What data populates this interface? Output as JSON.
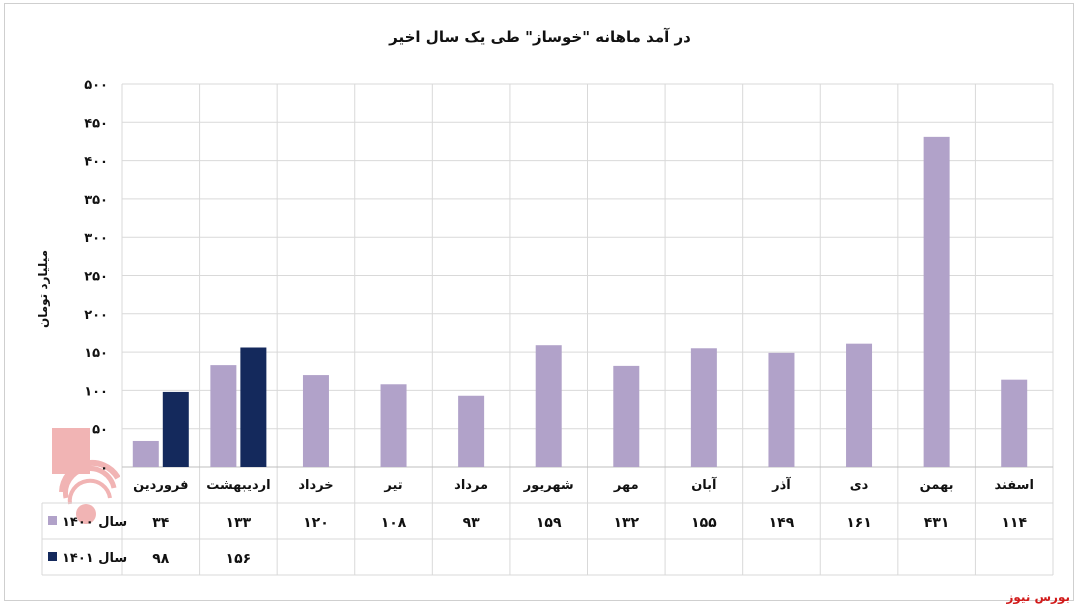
{
  "title": "در آمد ماهانه \"خوساز\" طی یک سال اخیر",
  "source": "بورس نیوز",
  "colors": {
    "series_1400": "#b1a2c9",
    "series_1401": "#14295c",
    "grid": "#d9d9d9",
    "source": "#d11a1a"
  },
  "chart_data": {
    "type": "bar",
    "title": "در آمد ماهانه \"خوساز\" طی یک سال اخیر",
    "ylabel": "میلیارد تومان",
    "xlabel": "",
    "ylim": [
      0,
      500
    ],
    "yticks": [
      "۰",
      "۵۰",
      "۱۰۰",
      "۱۵۰",
      "۲۰۰",
      "۲۵۰",
      "۳۰۰",
      "۳۵۰",
      "۴۰۰",
      "۴۵۰",
      "۵۰۰"
    ],
    "ytick_values": [
      0,
      50,
      100,
      150,
      200,
      250,
      300,
      350,
      400,
      450,
      500
    ],
    "categories": [
      "فروردین",
      "اردیبهشت",
      "خرداد",
      "تیر",
      "مرداد",
      "شهریور",
      "مهر",
      "آبان",
      "آذر",
      "دی",
      "بهمن",
      "اسفند"
    ],
    "grid": true,
    "legend": "data-table",
    "series": [
      {
        "name": "سال ۱۴۰۰",
        "values": [
          34,
          133,
          120,
          108,
          93,
          159,
          132,
          155,
          149,
          161,
          431,
          114
        ],
        "labels": [
          "۳۴",
          "۱۳۳",
          "۱۲۰",
          "۱۰۸",
          "۹۳",
          "۱۵۹",
          "۱۳۲",
          "۱۵۵",
          "۱۴۹",
          "۱۶۱",
          "۴۳۱",
          "۱۱۴"
        ]
      },
      {
        "name": "سال ۱۴۰۱",
        "values": [
          98,
          156,
          null,
          null,
          null,
          null,
          null,
          null,
          null,
          null,
          null,
          null
        ],
        "labels": [
          "۹۸",
          "۱۵۶",
          "",
          "",
          "",
          "",
          "",
          "",
          "",
          "",
          "",
          ""
        ]
      }
    ]
  }
}
